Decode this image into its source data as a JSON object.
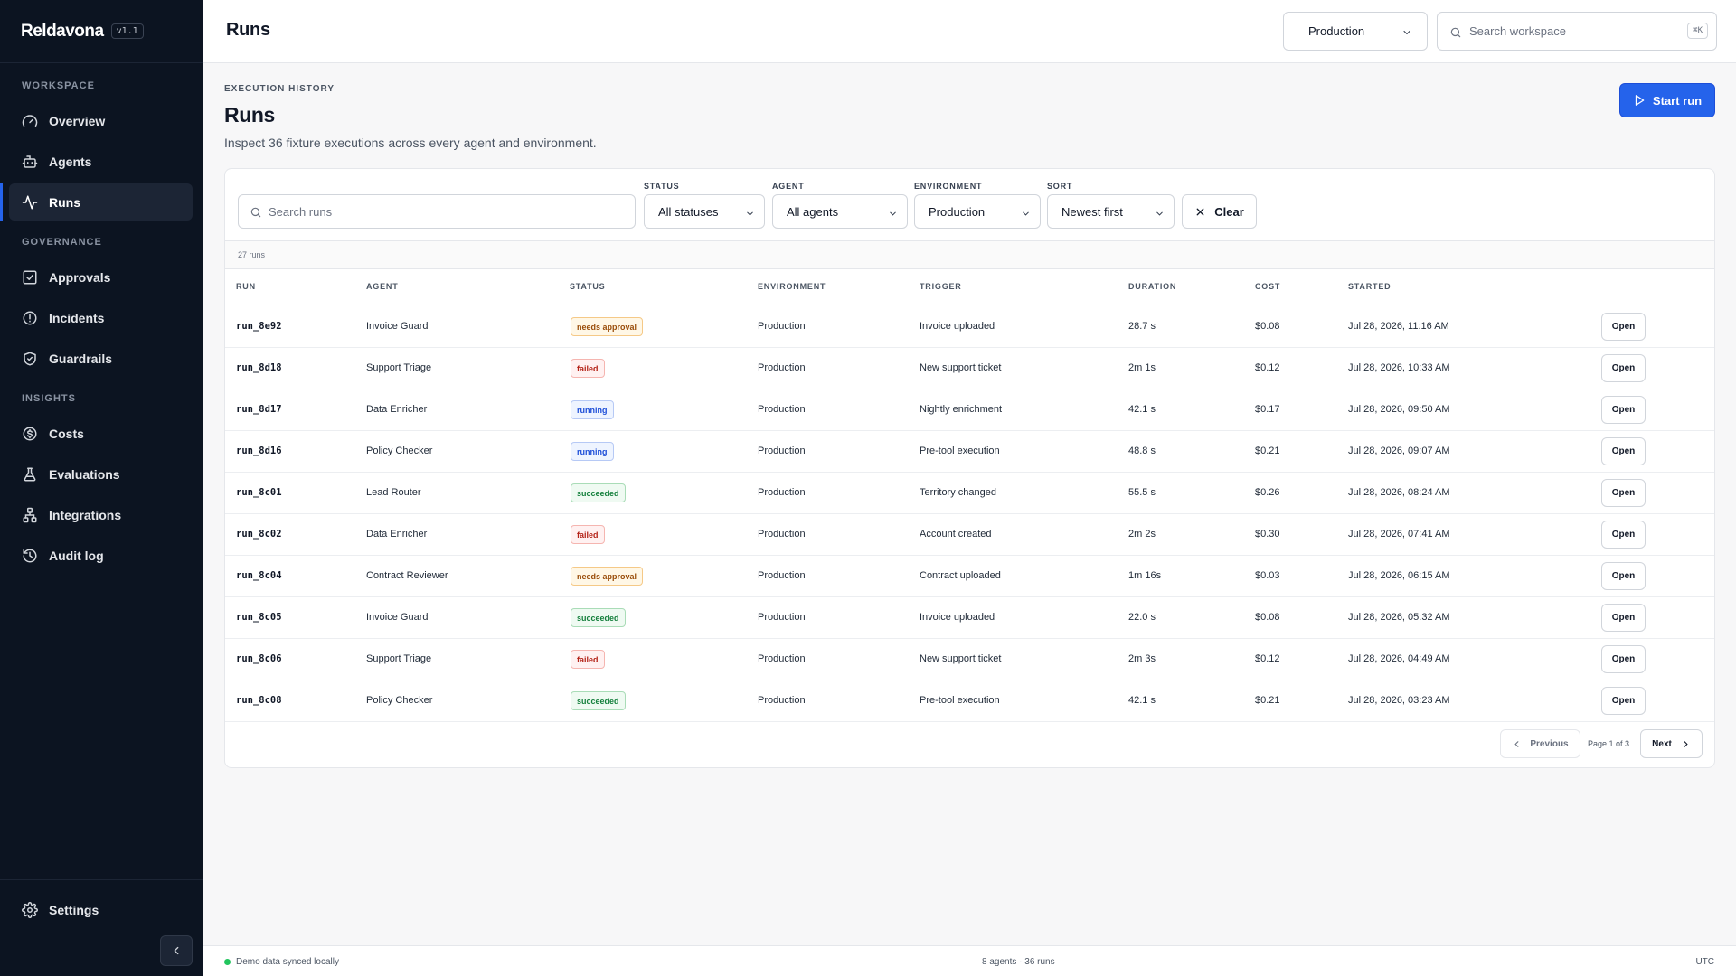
{
  "app": {
    "name": "Reldavona",
    "version": "v1.1"
  },
  "sidebar": {
    "sections": [
      {
        "label": "WORKSPACE",
        "items": [
          {
            "label": "Overview",
            "icon": "gauge-icon"
          },
          {
            "label": "Agents",
            "icon": "bot-icon"
          },
          {
            "label": "Runs",
            "icon": "activity-icon",
            "active": true
          }
        ]
      },
      {
        "label": "GOVERNANCE",
        "items": [
          {
            "label": "Approvals",
            "icon": "check-square-icon"
          },
          {
            "label": "Incidents",
            "icon": "alert-circle-icon"
          },
          {
            "label": "Guardrails",
            "icon": "shield-check-icon"
          }
        ]
      },
      {
        "label": "INSIGHTS",
        "items": [
          {
            "label": "Costs",
            "icon": "dollar-circle-icon"
          },
          {
            "label": "Evaluations",
            "icon": "flask-icon"
          },
          {
            "label": "Integrations",
            "icon": "network-icon"
          },
          {
            "label": "Audit log",
            "icon": "history-icon"
          }
        ]
      }
    ],
    "settings_label": "Settings"
  },
  "topbar": {
    "title": "Runs",
    "environment": "Production",
    "search_placeholder": "Search workspace",
    "shortcut": "⌘K"
  },
  "header": {
    "eyebrow": "EXECUTION HISTORY",
    "title": "Runs",
    "subtitle": "Inspect 36 fixture executions across every agent and environment.",
    "start_label": "Start run"
  },
  "filters": {
    "search_placeholder": "Search runs",
    "status_label": "STATUS",
    "status_value": "All statuses",
    "agent_label": "AGENT",
    "agent_value": "All agents",
    "environment_label": "ENVIRONMENT",
    "environment_value": "Production",
    "sort_label": "SORT",
    "sort_value": "Newest first",
    "clear_label": "Clear"
  },
  "table": {
    "count": "27 runs",
    "columns": [
      "RUN",
      "AGENT",
      "STATUS",
      "ENVIRONMENT",
      "TRIGGER",
      "DURATION",
      "COST",
      "STARTED"
    ],
    "open_label": "Open",
    "rows": [
      {
        "run": "run_8e92",
        "agent": "Invoice Guard",
        "status": "needs approval",
        "env": "Production",
        "trigger": "Invoice uploaded",
        "duration": "28.7 s",
        "cost": "$0.08",
        "started": "Jul 28, 2026, 11:16 AM"
      },
      {
        "run": "run_8d18",
        "agent": "Support Triage",
        "status": "failed",
        "env": "Production",
        "trigger": "New support ticket",
        "duration": "2m 1s",
        "cost": "$0.12",
        "started": "Jul 28, 2026, 10:33 AM"
      },
      {
        "run": "run_8d17",
        "agent": "Data Enricher",
        "status": "running",
        "env": "Production",
        "trigger": "Nightly enrichment",
        "duration": "42.1 s",
        "cost": "$0.17",
        "started": "Jul 28, 2026, 09:50 AM"
      },
      {
        "run": "run_8d16",
        "agent": "Policy Checker",
        "status": "running",
        "env": "Production",
        "trigger": "Pre-tool execution",
        "duration": "48.8 s",
        "cost": "$0.21",
        "started": "Jul 28, 2026, 09:07 AM"
      },
      {
        "run": "run_8c01",
        "agent": "Lead Router",
        "status": "succeeded",
        "env": "Production",
        "trigger": "Territory changed",
        "duration": "55.5 s",
        "cost": "$0.26",
        "started": "Jul 28, 2026, 08:24 AM"
      },
      {
        "run": "run_8c02",
        "agent": "Data Enricher",
        "status": "failed",
        "env": "Production",
        "trigger": "Account created",
        "duration": "2m 2s",
        "cost": "$0.30",
        "started": "Jul 28, 2026, 07:41 AM"
      },
      {
        "run": "run_8c04",
        "agent": "Contract Reviewer",
        "status": "needs approval",
        "env": "Production",
        "trigger": "Contract uploaded",
        "duration": "1m 16s",
        "cost": "$0.03",
        "started": "Jul 28, 2026, 06:15 AM"
      },
      {
        "run": "run_8c05",
        "agent": "Invoice Guard",
        "status": "succeeded",
        "env": "Production",
        "trigger": "Invoice uploaded",
        "duration": "22.0 s",
        "cost": "$0.08",
        "started": "Jul 28, 2026, 05:32 AM"
      },
      {
        "run": "run_8c06",
        "agent": "Support Triage",
        "status": "failed",
        "env": "Production",
        "trigger": "New support ticket",
        "duration": "2m 3s",
        "cost": "$0.12",
        "started": "Jul 28, 2026, 04:49 AM"
      },
      {
        "run": "run_8c08",
        "agent": "Policy Checker",
        "status": "succeeded",
        "env": "Production",
        "trigger": "Pre-tool execution",
        "duration": "42.1 s",
        "cost": "$0.21",
        "started": "Jul 28, 2026, 03:23 AM"
      }
    ]
  },
  "pagination": {
    "previous": "Previous",
    "page_info": "Page 1 of 3",
    "next": "Next"
  },
  "footer": {
    "sync": "Demo data synced locally",
    "summary": "8 agents · 36 runs",
    "timezone": "UTC"
  },
  "colors": {
    "accent": "#2563eb",
    "sidebar_bg": "#0c1421",
    "success": "#22c55e"
  }
}
